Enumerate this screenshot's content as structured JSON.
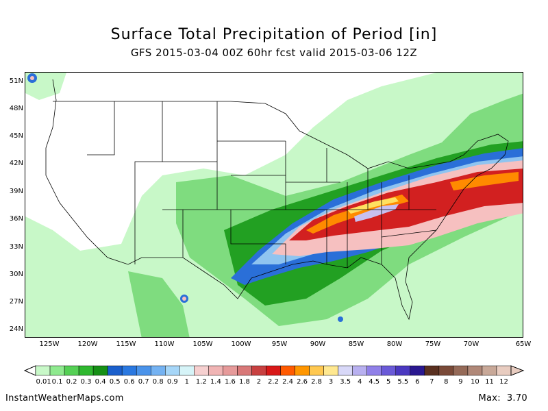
{
  "header": {
    "title": "Surface Total Precipitation of Period [in]",
    "subtitle": "GFS 2015-03-04 00Z 60hr fcst valid 2015-03-06 12Z"
  },
  "map": {
    "lat_labels": [
      "51N",
      "48N",
      "45N",
      "42N",
      "39N",
      "36N",
      "33N",
      "30N",
      "27N",
      "24N"
    ],
    "lon_labels": [
      "125W",
      "120W",
      "115W",
      "110W",
      "105W",
      "100W",
      "95W",
      "90W",
      "85W",
      "80W",
      "75W",
      "70W",
      "65W"
    ],
    "colors": {
      "light_green": "#c8f8c8",
      "green": "#7fdc7f",
      "dark_green": "#22a022",
      "blue": "#2a6fd8",
      "light_blue": "#8fc4f0",
      "pink": "#f6c0c0",
      "red": "#d22020",
      "orange": "#ff8a00",
      "yellow": "#ffe060",
      "lavender": "#c8c0f0"
    }
  },
  "legend": {
    "labels": [
      "0.01",
      "0.1",
      "0.2",
      "0.3",
      "0.4",
      "0.5",
      "0.6",
      "0.7",
      "0.8",
      "0.9",
      "1",
      "1.2",
      "1.4",
      "1.6",
      "1.8",
      "2",
      "2.2",
      "2.4",
      "2.6",
      "2.8",
      "3",
      "3.5",
      "4",
      "4.5",
      "5",
      "5.5",
      "6",
      "7",
      "8",
      "9",
      "10",
      "11",
      "12"
    ],
    "colors": [
      "#c8f8c8",
      "#8fea8f",
      "#55d055",
      "#2fb82f",
      "#169016",
      "#1a5fcc",
      "#2a78e0",
      "#4a93ea",
      "#74b2f2",
      "#a6d6f8",
      "#d6f4f8",
      "#f6d0d0",
      "#f0b4b4",
      "#e69a9a",
      "#d87878",
      "#c84040",
      "#d81818",
      "#ff5a00",
      "#ff9600",
      "#ffc850",
      "#ffe890",
      "#d8d8f8",
      "#b8b0f0",
      "#9080e8",
      "#6a5ad8",
      "#4a38c0",
      "#2a1890",
      "#5a3020",
      "#7a4a38",
      "#956a58",
      "#b08878",
      "#c8a898",
      "#e8ccc0"
    ],
    "site": "InstantWeatherMaps.com",
    "max_label": "Max:",
    "max_value": "3.70"
  }
}
